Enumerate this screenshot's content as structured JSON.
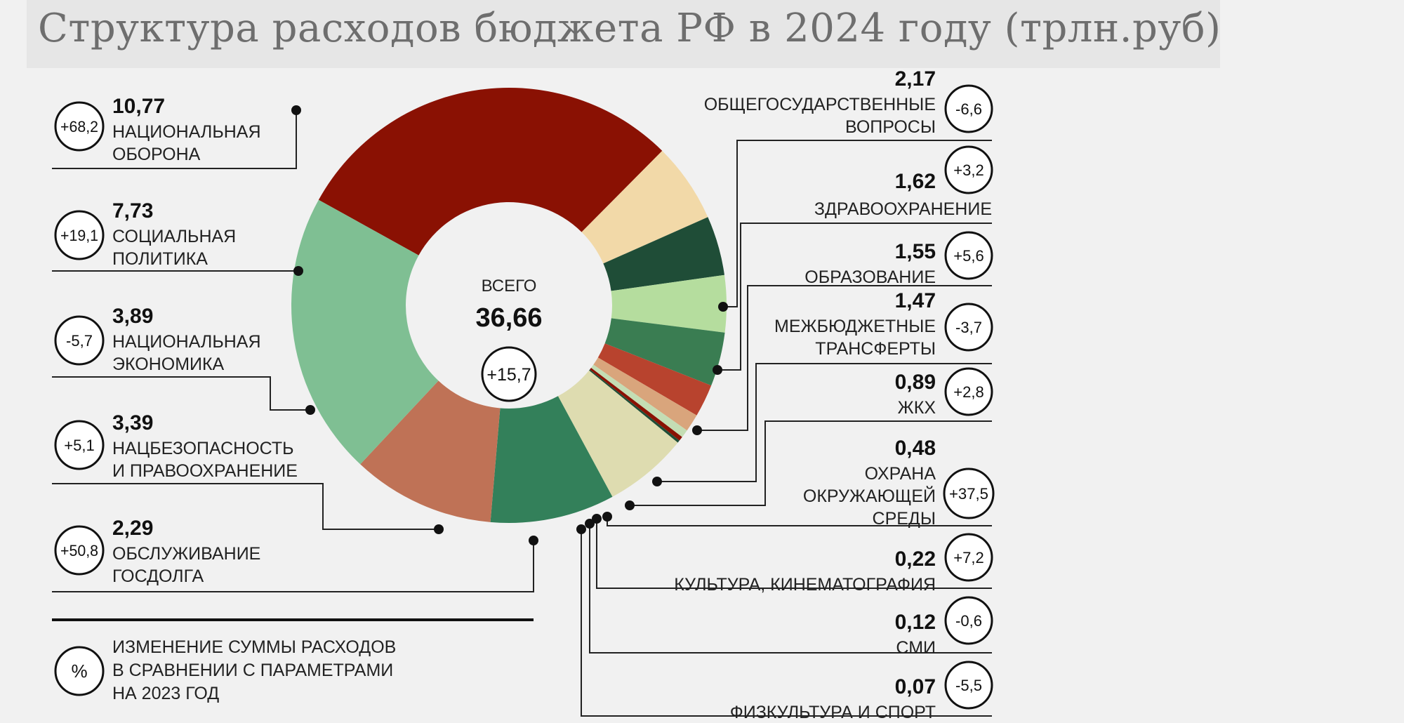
{
  "title": "Структура расходов бюджета РФ в 2024 году (трлн.руб)",
  "chart_data": {
    "type": "pie",
    "subtype": "donut",
    "title": "Структура расходов бюджета РФ в 2024 году (трлн.руб)",
    "unit": "трлн.руб",
    "total": {
      "label": "ВСЕГО",
      "value": "36,66",
      "change": "+15,7"
    },
    "slices": [
      {
        "label": "НАЦИОНАЛЬНАЯ ОБОРОНА",
        "lines": [
          "НАЦИОНАЛЬНАЯ",
          "ОБОРОНА"
        ],
        "value": 10.77,
        "display": "10,77",
        "change": "+68,2",
        "color": "#8a1103"
      },
      {
        "label": "ОБЩЕГОСУДАРСТВЕННЫЕ ВОПРОСЫ",
        "lines": [
          "ОБЩЕГОСУДАРСТВЕННЫЕ",
          "ВОПРОСЫ"
        ],
        "value": 2.17,
        "display": "2,17",
        "change": "-6,6",
        "color": "#f2d9a8"
      },
      {
        "label": "ЗДРАВООХРАНЕНИЕ",
        "lines": [
          "ЗДРАВООХРАНЕНИЕ"
        ],
        "value": 1.62,
        "display": "1,62",
        "change": "+3,2",
        "color": "#1f4d37"
      },
      {
        "label": "ОБРАЗОВАНИЕ",
        "lines": [
          "ОБРАЗОВАНИЕ"
        ],
        "value": 1.55,
        "display": "1,55",
        "change": "+5,6",
        "color": "#b5dd9e"
      },
      {
        "label": "МЕЖБЮДЖЕТНЫЕ ТРАНСФЕРТЫ",
        "lines": [
          "МЕЖБЮДЖЕТНЫЕ",
          "ТРАНСФЕРТЫ"
        ],
        "value": 1.47,
        "display": "1,47",
        "change": "-3,7",
        "color": "#3a7d52"
      },
      {
        "label": "ЖКХ",
        "lines": [
          "ЖКХ"
        ],
        "value": 0.89,
        "display": "0,89",
        "change": "+2,8",
        "color": "#b8432e"
      },
      {
        "label": "ОХРАНА ОКРУЖАЮЩЕЙ СРЕДЫ",
        "lines": [
          "ОХРАНА",
          "ОКРУЖАЮЩЕЙ",
          "СРЕДЫ"
        ],
        "value": 0.48,
        "display": "0,48",
        "change": "+37,5",
        "color": "#d9a57c"
      },
      {
        "label": "КУЛЬТУРА, КИНЕМАТОГРАФИЯ",
        "lines": [
          "КУЛЬТУРА, КИНЕМАТОГРАФИЯ"
        ],
        "value": 0.22,
        "display": "0,22",
        "change": "+7,2",
        "color": "#c4ddb4"
      },
      {
        "label": "СМИ",
        "lines": [
          "СМИ"
        ],
        "value": 0.12,
        "display": "0,12",
        "change": "-0,6",
        "color": "#8a1103"
      },
      {
        "label": "ФИЗКУЛЬТУРА И СПОРТ",
        "lines": [
          "ФИЗКУЛЬТУРА И СПОРТ"
        ],
        "value": 0.07,
        "display": "0,07",
        "change": "-5,5",
        "color": "#1f4d37"
      },
      {
        "label": "ОБСЛУЖИВАНИЕ ГОСДОЛГА",
        "lines": [
          "ОБСЛУЖИВАНИЕ",
          "ГОСДОЛГА"
        ],
        "value": 2.29,
        "display": "2,29",
        "change": "+50,8",
        "color": "#dedcb0"
      },
      {
        "label": "НАЦБЕЗОПАСНОСТЬ И ПРАВООХРАНЕНИЕ",
        "lines": [
          "НАЦБЕЗОПАСНОСТЬ",
          "И ПРАВООХРАНЕНИЕ"
        ],
        "value": 3.39,
        "display": "3,39",
        "change": "+5,1",
        "color": "#33805a"
      },
      {
        "label": "НАЦИОНАЛЬНАЯ ЭКОНОМИКА",
        "lines": [
          "НАЦИОНАЛЬНАЯ",
          "ЭКОНОМИКА"
        ],
        "value": 3.89,
        "display": "3,89",
        "change": "-5,7",
        "color": "#bf7256"
      },
      {
        "label": "СОЦИАЛЬНАЯ ПОЛИТИКА",
        "lines": [
          "СОЦИАЛЬНАЯ",
          "ПОЛИТИКА"
        ],
        "value": 7.73,
        "display": "7,73",
        "change": "+19,1",
        "color": "#7fbf93"
      }
    ],
    "legend_note": {
      "symbol": "%",
      "lines": [
        "ИЗМЕНЕНИЕ СУММЫ РАСХОДОВ",
        "В СРАВНЕНИИ С ПАРАМЕТРАМИ",
        "НА 2023 ГОД"
      ]
    }
  }
}
